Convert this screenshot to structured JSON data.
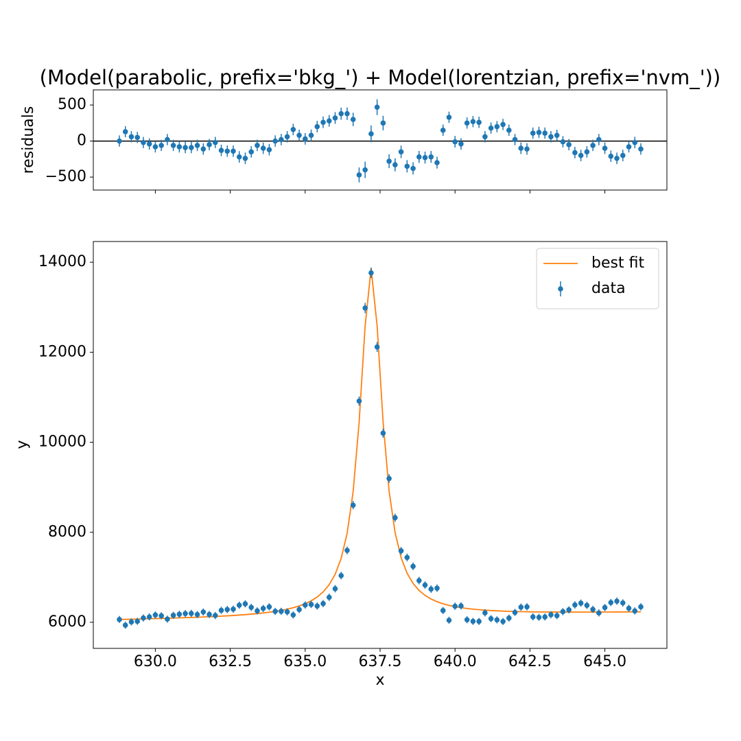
{
  "chart_data": [
    {
      "type": "errorbar",
      "title": "(Model(parabolic, prefix='bkg_') + Model(lorentzian, prefix='nvm_'))",
      "ylabel": "residuals",
      "ylim": [
        -680,
        710
      ],
      "yticks": [
        500,
        0,
        {
          "value": -500,
          "label": "−500"
        }
      ],
      "hline": 0,
      "series": [
        {
          "color": "#1f77b4",
          "values": [
            0,
            130,
            60,
            50,
            -20,
            -40,
            -80,
            -60,
            20,
            -60,
            -80,
            -90,
            -90,
            -60,
            -110,
            -50,
            -20,
            -130,
            -140,
            -140,
            -220,
            -240,
            -150,
            -60,
            -100,
            -120,
            0,
            20,
            60,
            160,
            80,
            30,
            80,
            200,
            260,
            280,
            320,
            380,
            380,
            300,
            -470,
            -400,
            100,
            470,
            250,
            -280,
            -330,
            -150,
            -350,
            -380,
            -220,
            -230,
            -220,
            -300,
            150,
            330,
            -10,
            -40,
            250,
            270,
            260,
            60,
            180,
            200,
            230,
            150,
            20,
            -100,
            -110,
            110,
            120,
            110,
            60,
            80,
            -10,
            -50,
            -160,
            -200,
            -150,
            -60,
            20,
            -100,
            -210,
            -240,
            -200,
            -80,
            -20,
            -110
          ]
        }
      ]
    },
    {
      "type": "errorbar",
      "xlabel": "x",
      "ylabel": "y",
      "xlim": [
        627.93,
        647.07
      ],
      "ylim": [
        5420,
        14460
      ],
      "xticks": [
        {
          "value": 630,
          "label": "630.0"
        },
        {
          "value": 632.5,
          "label": "632.5"
        },
        {
          "value": 635,
          "label": "635.0"
        },
        {
          "value": 637.5,
          "label": "637.5"
        },
        {
          "value": 640,
          "label": "640.0"
        },
        {
          "value": 642.5,
          "label": "642.5"
        },
        {
          "value": 645,
          "label": "645.0"
        }
      ],
      "yticks": [
        6000,
        8000,
        10000,
        12000,
        14000
      ],
      "legend": "upper right",
      "x": [
        628.8,
        629.0,
        629.2,
        629.4,
        629.6,
        629.8,
        630.0,
        630.2,
        630.4,
        630.6,
        630.8,
        631.0,
        631.2,
        631.4,
        631.6,
        631.8,
        632.0,
        632.2,
        632.4,
        632.6,
        632.8,
        633.0,
        633.2,
        633.4,
        633.6,
        633.8,
        634.0,
        634.2,
        634.4,
        634.6,
        634.8,
        635.0,
        635.2,
        635.4,
        635.6,
        635.8,
        636.0,
        636.2,
        636.4,
        636.6,
        636.8,
        637.0,
        637.2,
        637.4,
        637.6,
        637.8,
        638.0,
        638.2,
        638.4,
        638.6,
        638.8,
        639.0,
        639.2,
        639.4,
        639.6,
        639.8,
        640.0,
        640.2,
        640.4,
        640.6,
        640.8,
        641.0,
        641.2,
        641.4,
        641.6,
        641.8,
        642.0,
        642.2,
        642.4,
        642.6,
        642.8,
        643.0,
        643.2,
        643.4,
        643.6,
        643.8,
        644.0,
        644.2,
        644.4,
        644.6,
        644.8,
        645.0,
        645.2,
        645.4,
        645.6,
        645.8,
        646.0,
        646.2
      ],
      "series": [
        {
          "name": "best fit",
          "type": "line",
          "color": "#ff7f0e",
          "values": [
            6062,
            6065,
            6068,
            6072,
            6075,
            6079,
            6082,
            6086,
            6090,
            6094,
            6098,
            6103,
            6107,
            6112,
            6118,
            6123,
            6130,
            6136,
            6143,
            6151,
            6160,
            6170,
            6181,
            6193,
            6207,
            6223,
            6242,
            6264,
            6291,
            6323,
            6363,
            6413,
            6477,
            6561,
            6675,
            6835,
            7066,
            7417,
            7977,
            8902,
            10444,
            12583,
            13864,
            12587,
            10452,
            8914,
            7993,
            7437,
            7090,
            6863,
            6707,
            6597,
            6517,
            6457,
            6411,
            6375,
            6347,
            6324,
            6306,
            6291,
            6279,
            6269,
            6261,
            6254,
            6248,
            6243,
            6239,
            6236,
            6234,
            6231,
            6230,
            6228,
            6227,
            6227,
            6226,
            6226,
            6226,
            6226,
            6226,
            6227,
            6227,
            6228,
            6228,
            6229,
            6230,
            6231,
            6232,
            6233
          ]
        },
        {
          "name": "data",
          "type": "errorbar",
          "color": "#1f77b4",
          "values": [
            6062,
            5935,
            6008,
            6022,
            6095,
            6119,
            6162,
            6146,
            6070,
            6154,
            6178,
            6193,
            6197,
            6172,
            6228,
            6173,
            6150,
            6266,
            6283,
            6291,
            6380,
            6410,
            6331,
            6253,
            6307,
            6343,
            6242,
            6244,
            6231,
            6163,
            6283,
            6383,
            6397,
            6361,
            6415,
            6555,
            6746,
            7037,
            7597,
            8602,
            10914,
            12983,
            13764,
            12117,
            10202,
            9194,
            8323,
            7587,
            7440,
            7243,
            6927,
            6827,
            6737,
            6757,
            6261,
            6045,
            6357,
            6364,
            6056,
            6021,
            6019,
            6209,
            6081,
            6054,
            6018,
            6093,
            6219,
            6336,
            6344,
            6121,
            6110,
            6118,
            6167,
            6147,
            6236,
            6276,
            6386,
            6426,
            6376,
            6287,
            6207,
            6328,
            6438,
            6469,
            6430,
            6311,
            6252,
            6343
          ],
          "errors": [
            78,
            77,
            78,
            78,
            78,
            78,
            79,
            78,
            78,
            78,
            79,
            79,
            79,
            79,
            79,
            79,
            78,
            79,
            79,
            79,
            80,
            80,
            80,
            79,
            79,
            80,
            79,
            79,
            79,
            79,
            79,
            80,
            80,
            80,
            80,
            81,
            82,
            84,
            87,
            93,
            104,
            114,
            117,
            110,
            101,
            96,
            91,
            87,
            86,
            85,
            83,
            83,
            82,
            82,
            79,
            78,
            80,
            80,
            78,
            78,
            78,
            79,
            78,
            78,
            78,
            78,
            79,
            80,
            80,
            78,
            78,
            78,
            79,
            78,
            79,
            79,
            80,
            80,
            80,
            79,
            79,
            80,
            80,
            80,
            80,
            79,
            79,
            80
          ]
        }
      ]
    }
  ]
}
